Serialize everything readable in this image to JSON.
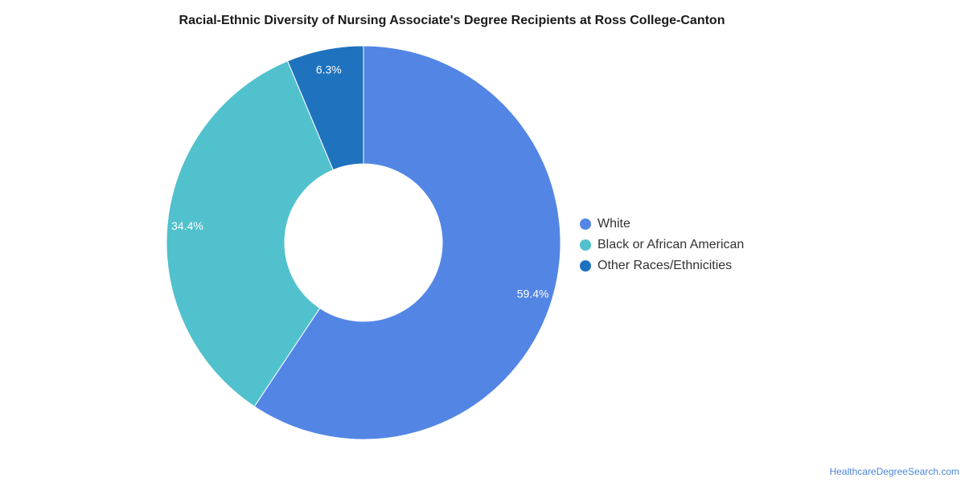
{
  "chart_data": {
    "type": "pie",
    "title": "Racial-Ethnic Diversity of Nursing Associate's Degree Recipients at Ross College-Canton",
    "donut": true,
    "slices": [
      {
        "label": "White",
        "value": 59.4,
        "display": "59.4%",
        "color": "#5386e4"
      },
      {
        "label": "Black or African American",
        "value": 34.4,
        "display": "34.4%",
        "color": "#51c1cd"
      },
      {
        "label": "Other Races/Ethnicities",
        "value": 6.3,
        "display": "6.3%",
        "color": "#1f72be"
      }
    ],
    "legend_position": "right"
  },
  "source": "HealthcareDegreeSearch.com"
}
